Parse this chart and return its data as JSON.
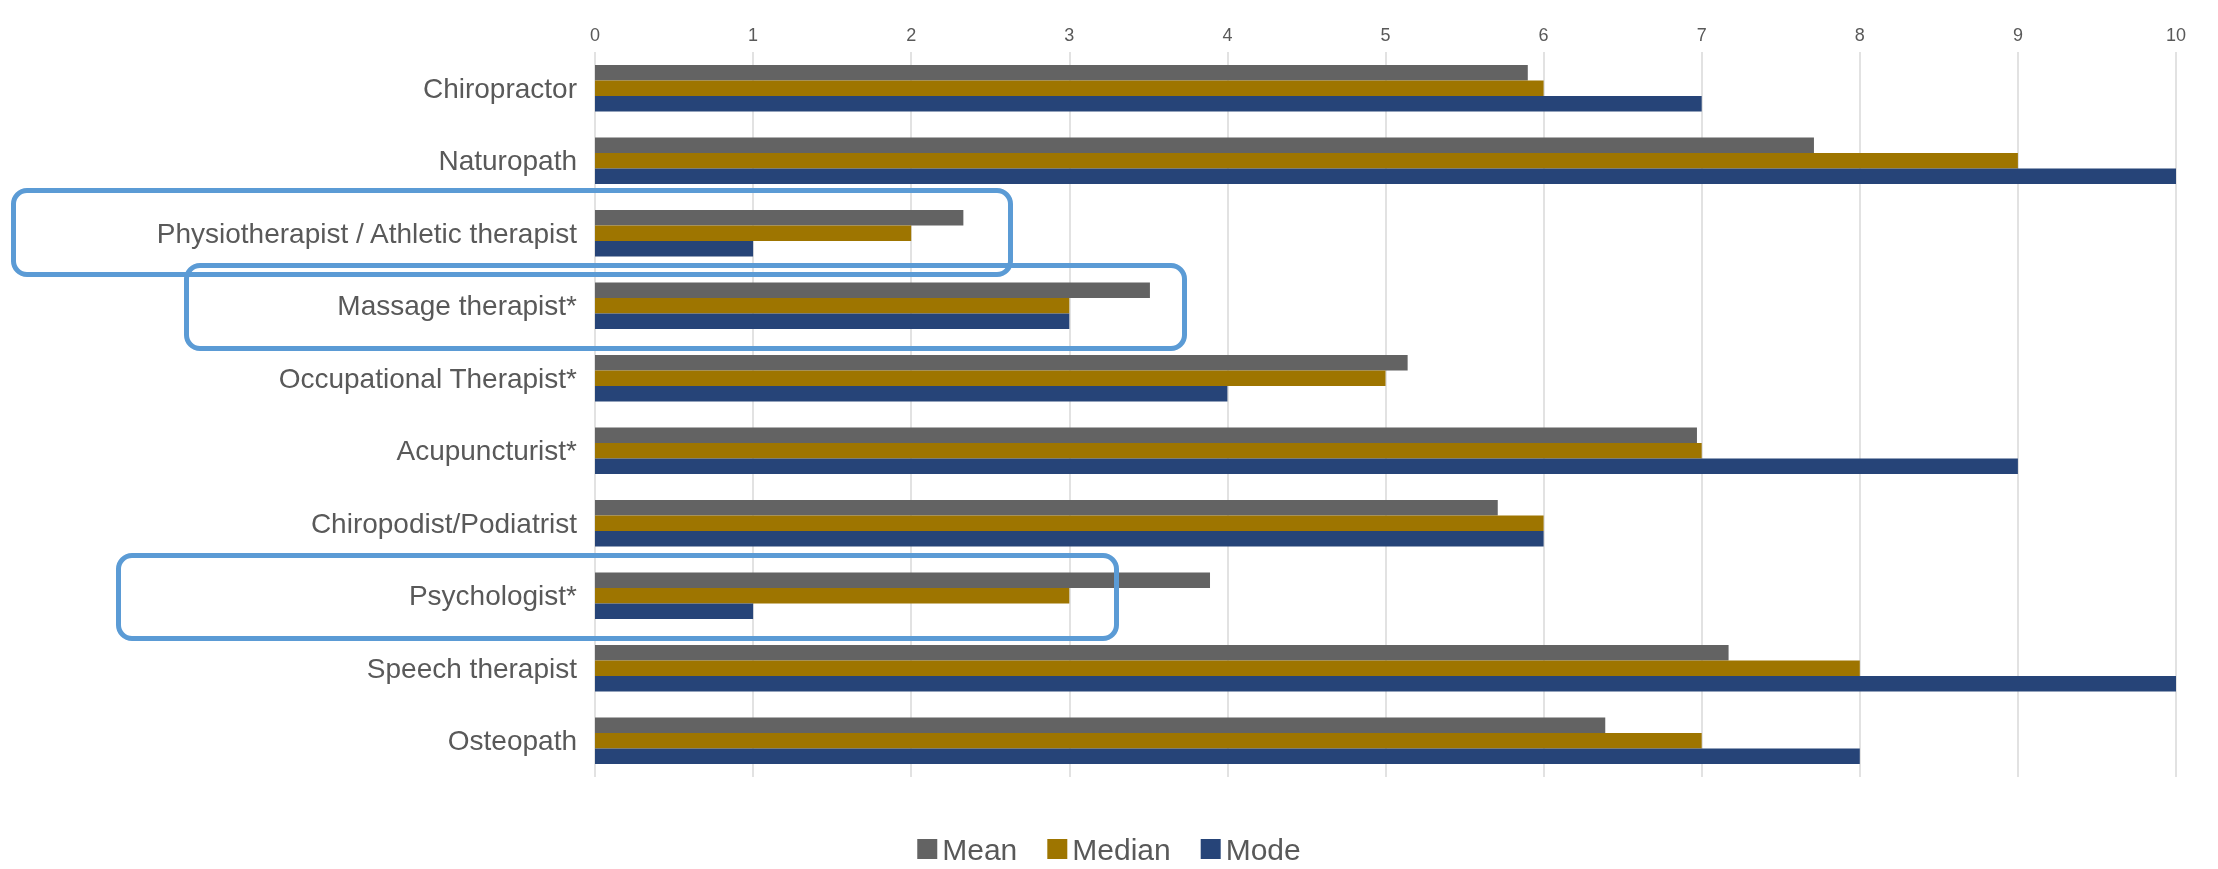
{
  "chart_data": {
    "type": "bar",
    "orientation": "horizontal",
    "categories": [
      "Chiropractor",
      "Naturopath",
      "Physiotherapist / Athletic therapist",
      "Massage therapist*",
      "Occupational Therapist*",
      "Acupuncturist*",
      "Chiropodist/Podiatrist",
      "Psychologist*",
      "Speech therapist",
      "Osteopath"
    ],
    "series": [
      {
        "name": "Mean",
        "color": "#636363",
        "values": [
          5.9,
          7.71,
          2.33,
          3.51,
          5.14,
          6.97,
          5.71,
          3.89,
          7.17,
          6.39
        ]
      },
      {
        "name": "Median",
        "color": "#9e7500",
        "values": [
          6,
          9,
          2,
          3,
          5,
          7,
          6,
          3,
          8,
          7
        ]
      },
      {
        "name": "Mode",
        "color": "#264478",
        "values": [
          7,
          10,
          1,
          3,
          4,
          9,
          6,
          1,
          10,
          8
        ]
      }
    ],
    "xlim": [
      0,
      10
    ],
    "xticks": [
      0,
      1,
      2,
      3,
      4,
      5,
      6,
      7,
      8,
      9,
      10
    ],
    "grid": "x",
    "legend": "bottom"
  }
}
